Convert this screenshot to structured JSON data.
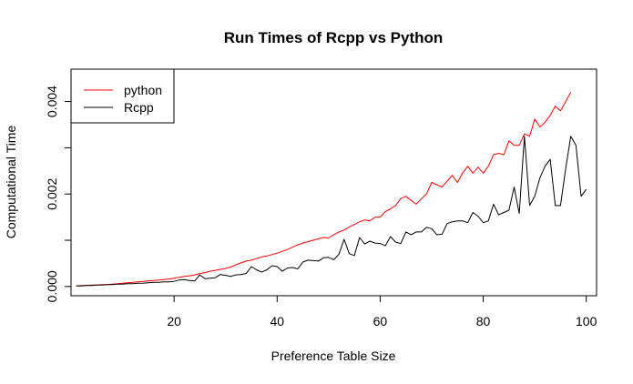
{
  "chart_data": {
    "type": "line",
    "title": "Run Times of Rcpp vs Python",
    "xlabel": "Preference Table Size",
    "ylabel": "Computational Time",
    "xlim": [
      0,
      102
    ],
    "ylim": [
      -0.0002,
      0.0047
    ],
    "x_ticks": [
      20,
      40,
      60,
      80,
      100
    ],
    "y_ticks": [
      0,
      0.001,
      0.002,
      0.003,
      0.004
    ],
    "y_tick_labels": [
      "0.000",
      "0.002",
      "0.004"
    ],
    "y_tick_label_values": [
      0,
      0.002,
      0.004
    ],
    "legend_position": "top-left",
    "series": [
      {
        "name": "python",
        "color": "#ff0000",
        "x": [
          1,
          2,
          3,
          4,
          5,
          6,
          7,
          8,
          9,
          10,
          11,
          12,
          13,
          14,
          15,
          16,
          17,
          18,
          19,
          20,
          21,
          22,
          23,
          24,
          25,
          26,
          27,
          28,
          29,
          30,
          31,
          32,
          33,
          34,
          35,
          36,
          37,
          38,
          39,
          40,
          41,
          42,
          43,
          44,
          45,
          46,
          47,
          48,
          49,
          50,
          51,
          52,
          53,
          54,
          55,
          56,
          57,
          58,
          59,
          60,
          61,
          62,
          63,
          64,
          65,
          66,
          67,
          68,
          69,
          70,
          71,
          72,
          73,
          74,
          75,
          76,
          77,
          78,
          79,
          80,
          81,
          82,
          83,
          84,
          85,
          86,
          87,
          88,
          89,
          90,
          91,
          92,
          93,
          94,
          95,
          96,
          97
        ],
        "values": [
          1e-05,
          2e-05,
          2e-05,
          3e-05,
          3e-05,
          4e-05,
          4e-05,
          5e-05,
          6e-05,
          7e-05,
          8e-05,
          9e-05,
          0.0001,
          0.00011,
          0.00012,
          0.00013,
          0.00014,
          0.00015,
          0.00016,
          0.00018,
          0.0002,
          0.00022,
          0.00023,
          0.00025,
          0.00028,
          0.0003,
          0.00033,
          0.00035,
          0.00037,
          0.00039,
          0.00042,
          0.00047,
          0.00051,
          0.00055,
          0.00057,
          0.0006,
          0.00064,
          0.00066,
          0.00069,
          0.00072,
          0.00076,
          0.0008,
          0.00085,
          0.0009,
          0.00094,
          0.00097,
          0.001,
          0.00103,
          0.00106,
          0.00105,
          0.00112,
          0.00118,
          0.00122,
          0.00129,
          0.00134,
          0.0014,
          0.00144,
          0.00142,
          0.0015,
          0.0015,
          0.00162,
          0.00168,
          0.00175,
          0.0019,
          0.00195,
          0.00186,
          0.00178,
          0.0019,
          0.002,
          0.00225,
          0.0022,
          0.00215,
          0.00228,
          0.0024,
          0.00225,
          0.00245,
          0.0026,
          0.00245,
          0.00258,
          0.00245,
          0.0026,
          0.00285,
          0.00288,
          0.00285,
          0.00315,
          0.00305,
          0.00305,
          0.0033,
          0.00325,
          0.00362,
          0.00345,
          0.00355,
          0.0037,
          0.0039,
          0.0038,
          0.004,
          0.0042
        ]
      },
      {
        "name": "Rcpp",
        "color": "#000000",
        "x": [
          1,
          2,
          3,
          4,
          5,
          6,
          7,
          8,
          9,
          10,
          11,
          12,
          13,
          14,
          15,
          16,
          17,
          18,
          19,
          20,
          21,
          22,
          23,
          24,
          25,
          26,
          27,
          28,
          29,
          30,
          31,
          32,
          33,
          34,
          35,
          36,
          37,
          38,
          39,
          40,
          41,
          42,
          43,
          44,
          45,
          46,
          47,
          48,
          49,
          50,
          51,
          52,
          53,
          54,
          55,
          56,
          57,
          58,
          59,
          60,
          61,
          62,
          63,
          64,
          65,
          66,
          67,
          68,
          69,
          70,
          71,
          72,
          73,
          74,
          75,
          76,
          77,
          78,
          79,
          80,
          81,
          82,
          83,
          84,
          85,
          86,
          87,
          88,
          89,
          90,
          91,
          92,
          93,
          94,
          95,
          96,
          97,
          98,
          99,
          100
        ],
        "values": [
          1e-05,
          1e-05,
          2e-05,
          2e-05,
          3e-05,
          3e-05,
          4e-05,
          4e-05,
          5e-05,
          5e-05,
          6e-05,
          6e-05,
          7e-05,
          7e-05,
          8e-05,
          9e-05,
          9e-05,
          0.0001,
          0.0001,
          0.00011,
          0.00014,
          0.00015,
          0.00013,
          0.00012,
          0.00025,
          0.00017,
          0.00018,
          0.00019,
          0.00026,
          0.00024,
          0.00022,
          0.00025,
          0.00026,
          0.00028,
          0.00043,
          0.00036,
          0.00031,
          0.00036,
          0.00045,
          0.00043,
          0.00033,
          0.0004,
          0.00041,
          0.00038,
          0.00053,
          0.00057,
          0.00056,
          0.00055,
          0.00062,
          0.00063,
          0.00058,
          0.0007,
          0.00102,
          0.00071,
          0.00067,
          0.00106,
          0.00092,
          0.00098,
          0.00094,
          0.00093,
          0.00088,
          0.00108,
          0.00096,
          0.00093,
          0.00118,
          0.00112,
          0.00118,
          0.00118,
          0.00128,
          0.00125,
          0.00112,
          0.00113,
          0.00136,
          0.0014,
          0.00142,
          0.00142,
          0.00138,
          0.0016,
          0.00152,
          0.00138,
          0.00142,
          0.00178,
          0.00155,
          0.0016,
          0.00165,
          0.00215,
          0.00158,
          0.00325,
          0.00175,
          0.00195,
          0.00235,
          0.0026,
          0.00275,
          0.00175,
          0.00175,
          0.00255,
          0.00325,
          0.00305,
          0.00195,
          0.0021
        ]
      }
    ]
  }
}
